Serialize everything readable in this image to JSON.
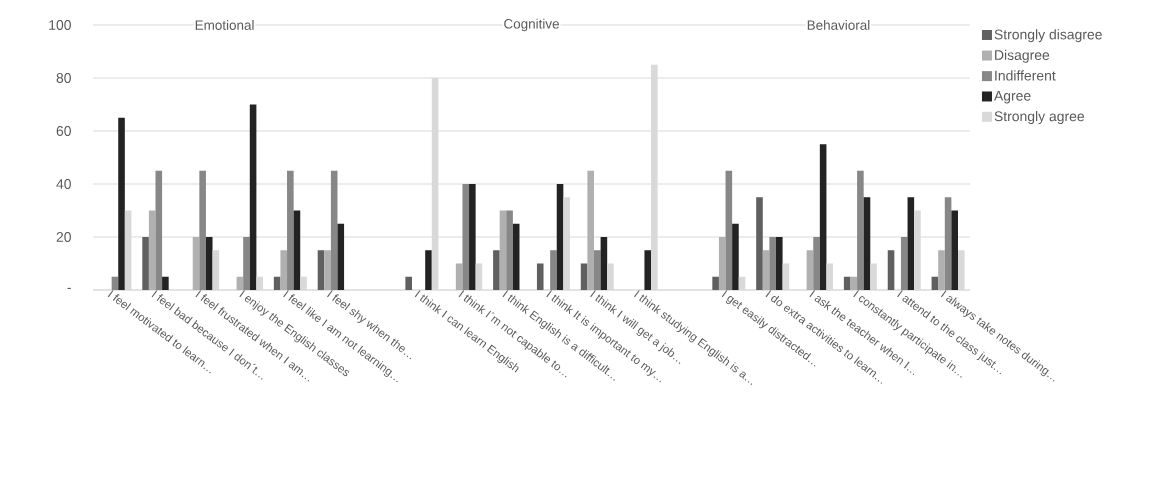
{
  "chart_data": {
    "type": "bar",
    "categories": [
      "I feel motivated to learn…",
      "I feel bad because I don´t…",
      "I feel frustrated when I am…",
      "I enjoy the English classes",
      "I feel like I am not learning…",
      "I feel shy when the…",
      null,
      "I think I can learn English",
      "I think I´m not capable to…",
      "I think English is a difficult…",
      "I think It is important to my…",
      "I think I will get a job…",
      "I think studying English is a…",
      null,
      "I get easily distracted…",
      "I do extra activities to learn…",
      "I ask the teacher when I…",
      "I constantly participate in…",
      "I attend to the class just…",
      "I always take notes during…"
    ],
    "series": [
      {
        "name": "Strongly disagree",
        "color": "#606060",
        "values": [
          0,
          20,
          0,
          0,
          5,
          15,
          null,
          5,
          0,
          15,
          10,
          10,
          0,
          null,
          5,
          35,
          0,
          5,
          15,
          5
        ]
      },
      {
        "name": "Disagree",
        "color": "#b0b0b0",
        "values": [
          0,
          30,
          20,
          5,
          15,
          15,
          null,
          0,
          10,
          30,
          0,
          45,
          0,
          null,
          20,
          15,
          15,
          5,
          0,
          15
        ]
      },
      {
        "name": "Indifferent",
        "color": "#878787",
        "values": [
          5,
          45,
          45,
          20,
          45,
          45,
          null,
          0,
          40,
          30,
          15,
          15,
          0,
          null,
          45,
          20,
          20,
          45,
          20,
          35
        ]
      },
      {
        "name": "Agree",
        "color": "#232323",
        "values": [
          65,
          5,
          20,
          70,
          30,
          25,
          null,
          15,
          40,
          25,
          40,
          20,
          15,
          null,
          25,
          20,
          55,
          35,
          35,
          30
        ]
      },
      {
        "name": "Strongly agree",
        "color": "#d9d9d9",
        "values": [
          30,
          0,
          15,
          5,
          5,
          0,
          null,
          80,
          10,
          0,
          35,
          10,
          85,
          null,
          5,
          10,
          10,
          10,
          30,
          15
        ]
      }
    ],
    "ylim": [
      0,
      100
    ],
    "yticks": [
      {
        "value": 0,
        "label": "-"
      },
      20,
      40,
      60,
      80,
      100
    ],
    "grid": "y",
    "legend": "right",
    "annotations": [
      "Emotional",
      "Cognitive",
      "Behavioral"
    ]
  }
}
